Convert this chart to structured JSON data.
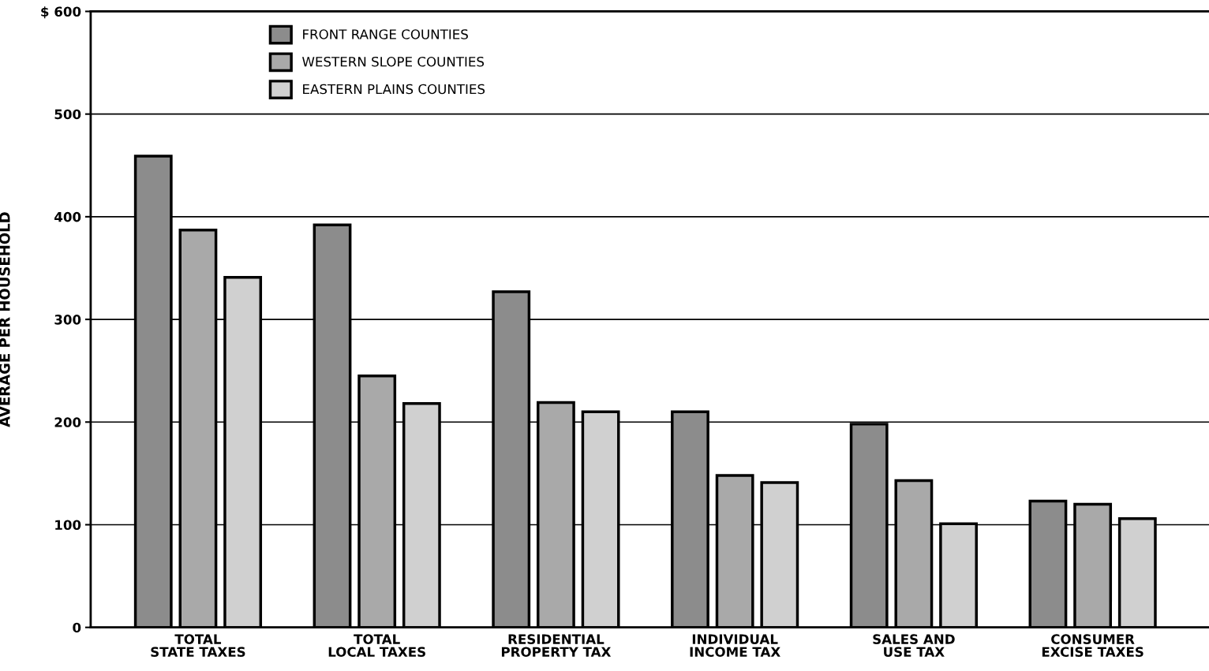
{
  "chart_data": {
    "type": "bar",
    "ylabel": "AVERAGE PER HOUSEHOLD",
    "categories": [
      "TOTAL\nSTATE TAXES",
      "TOTAL\nLOCAL TAXES",
      "RESIDENTIAL\nPROPERTY TAX",
      "INDIVIDUAL\nINCOME TAX",
      "SALES AND\nUSE TAX",
      "CONSUMER\nEXCISE TAXES"
    ],
    "series": [
      {
        "name": "FRONT RANGE COUNTIES",
        "color": "#8c8c8c",
        "values": [
          459,
          392,
          327,
          210,
          198,
          123
        ]
      },
      {
        "name": "WESTERN SLOPE COUNTIES",
        "color": "#a9a9a9",
        "values": [
          387,
          245,
          219,
          148,
          143,
          120
        ]
      },
      {
        "name": "EASTERN PLAINS COUNTIES",
        "color": "#d0d0d0",
        "values": [
          341,
          218,
          210,
          141,
          101,
          106
        ]
      }
    ],
    "ylim": [
      0,
      600
    ],
    "yticks": [
      0,
      100,
      200,
      300,
      400,
      500,
      {
        "value": 600,
        "label": "$ 600"
      }
    ],
    "grid": "y",
    "legend": "top left"
  }
}
